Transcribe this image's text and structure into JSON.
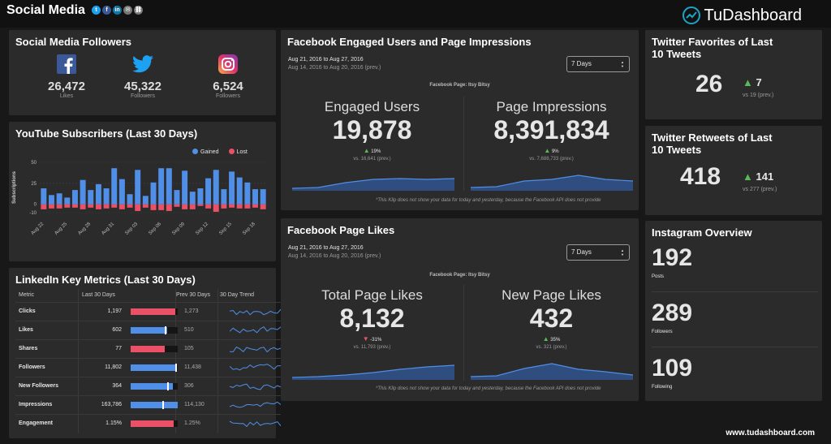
{
  "header": {
    "title": "Social Media",
    "brand": "TuDashboard",
    "share_icons": [
      "twitter-icon",
      "facebook-icon",
      "linkedin-icon",
      "email-icon",
      "link-icon"
    ]
  },
  "followers": {
    "title": "Social Media Followers",
    "items": [
      {
        "icon": "facebook-icon",
        "value": "26,472",
        "label": "Likes"
      },
      {
        "icon": "twitter-icon",
        "value": "45,322",
        "label": "Followers"
      },
      {
        "icon": "instagram-icon",
        "value": "6,524",
        "label": "Followers"
      }
    ]
  },
  "youtube": {
    "title": "YouTube Subscribers (Last 30 Days)",
    "legend_gained": "Gained",
    "legend_lost": "Lost",
    "ylabel": "Subscriptions"
  },
  "chart_data": {
    "type": "bar",
    "title": "YouTube Subscribers (Last 30 Days)",
    "xlabel": "",
    "ylabel": "Subscriptions",
    "ylim": [
      -10,
      50
    ],
    "x": [
      "Aug 22",
      "Aug 23",
      "Aug 24",
      "Aug 25",
      "Aug 26",
      "Aug 27",
      "Aug 28",
      "Aug 29",
      "Aug 30",
      "Aug 31",
      "Sep 01",
      "Sep 02",
      "Sep 03",
      "Sep 04",
      "Sep 05",
      "Sep 06",
      "Sep 07",
      "Sep 08",
      "Sep 09",
      "Sep 10",
      "Sep 11",
      "Sep 12",
      "Sep 13",
      "Sep 14",
      "Sep 15",
      "Sep 16",
      "Sep 17",
      "Sep 18",
      "Sep 19"
    ],
    "tick_labels": [
      "Aug 22",
      "Aug 25",
      "Aug 28",
      "Aug 31",
      "Sep 03",
      "Sep 06",
      "Sep 09",
      "Sep 12",
      "Sep 15",
      "Sep 18"
    ],
    "yticks": [
      -10,
      0,
      25,
      50
    ],
    "series": [
      {
        "name": "Gained",
        "color": "#4f8fe7",
        "values": [
          19,
          11,
          13,
          8,
          17,
          29,
          17,
          24,
          19,
          43,
          30,
          12,
          41,
          10,
          26,
          43,
          43,
          17,
          40,
          15,
          19,
          31,
          41,
          18,
          39,
          32,
          26,
          18,
          18
        ]
      },
      {
        "name": "Lost",
        "color": "#ea5167",
        "values": [
          -6,
          -5,
          -5,
          -4,
          -4,
          -6,
          -4,
          -6,
          -5,
          -4,
          -6,
          -4,
          -8,
          -4,
          -7,
          -7,
          -8,
          -3,
          -6,
          -6,
          -2,
          -5,
          -9,
          -5,
          -4,
          -5,
          -5,
          -4,
          -6
        ]
      }
    ]
  },
  "linkedin": {
    "title": "LinkedIn Key Metrics (Last 30 Days)",
    "headers": [
      "Metric",
      "Last 30 Days",
      "Prev 30 Days",
      "30 Day Trend"
    ],
    "rows": [
      {
        "metric": "Clicks",
        "last": "1,197",
        "prev": "1,273",
        "fill": 0.94,
        "color": "#ea5167"
      },
      {
        "metric": "Likes",
        "last": "602",
        "prev": "510",
        "fill": 0.78,
        "color": "#4f8fe7",
        "marker": 0.72
      },
      {
        "metric": "Shares",
        "last": "77",
        "prev": "105",
        "fill": 0.73,
        "color": "#ea5167"
      },
      {
        "metric": "Followers",
        "last": "11,802",
        "prev": "11,438",
        "fill": 0.98,
        "color": "#4f8fe7",
        "marker": 0.95
      },
      {
        "metric": "New Followers",
        "last": "364",
        "prev": "306",
        "fill": 0.9,
        "color": "#4f8fe7",
        "marker": 0.78
      },
      {
        "metric": "Impressions",
        "last": "163,786",
        "prev": "114,130",
        "fill": 1.0,
        "color": "#4f8fe7",
        "marker": 0.68
      },
      {
        "metric": "Engagement",
        "last": "1.15%",
        "prev": "1.25%",
        "fill": 0.91,
        "color": "#ea5167"
      }
    ]
  },
  "fb_engaged": {
    "title": "Facebook Engaged Users and Page Impressions",
    "date_range": "Aug 21, 2016 to Aug 27, 2016",
    "prev_range": "Aug 14, 2016 to Aug 20, 2016 (prev.)",
    "dropdown": "7 Days",
    "page": "Facebook Page: Itsy Bitsy",
    "left": {
      "label": "Engaged Users",
      "value": "19,878",
      "change": "19%",
      "prev": "vs. 16,641 (prev.)",
      "up": true
    },
    "right": {
      "label": "Page Impressions",
      "value": "8,391,834",
      "change": "9%",
      "prev": "vs. 7,688,733 (prev.)",
      "up": true
    },
    "note": "*This Klip does not show your data for today and yesterday, because the Facebook API does not provide"
  },
  "fb_likes": {
    "title": "Facebook Page Likes",
    "date_range": "Aug 21, 2016 to Aug 27, 2016",
    "prev_range": "Aug 14, 2016 to Aug 20, 2016 (prev.)",
    "dropdown": "7 Days",
    "page": "Facebook Page: Itsy Bitsy",
    "left": {
      "label": "Total Page Likes",
      "value": "8,132",
      "change": "-31%",
      "prev": "vs. 11,793 (prev.)",
      "up": false
    },
    "right": {
      "label": "New Page Likes",
      "value": "432",
      "change": "35%",
      "prev": "vs. 321 (prev.)",
      "up": true
    },
    "note": "*This Klip does not show your data for today and yesterday, because the Facebook API does not provide"
  },
  "twitter_fav": {
    "title_line1": "Twitter Favorites of Last",
    "title_line2": "10 Tweets",
    "value": "26",
    "change": "7",
    "prev": "vs 19 (prev.)"
  },
  "twitter_rt": {
    "title_line1": "Twitter Retweets of Last",
    "title_line2": "10 Tweets",
    "value": "418",
    "change": "141",
    "prev": "vs 277 (prev.)"
  },
  "instagram": {
    "title": "Instagram Overview",
    "items": [
      {
        "value": "192",
        "label": "Posts"
      },
      {
        "value": "289",
        "label": "Followers"
      },
      {
        "value": "109",
        "label": "Following"
      }
    ]
  },
  "footer": "www.tudashboard.com"
}
